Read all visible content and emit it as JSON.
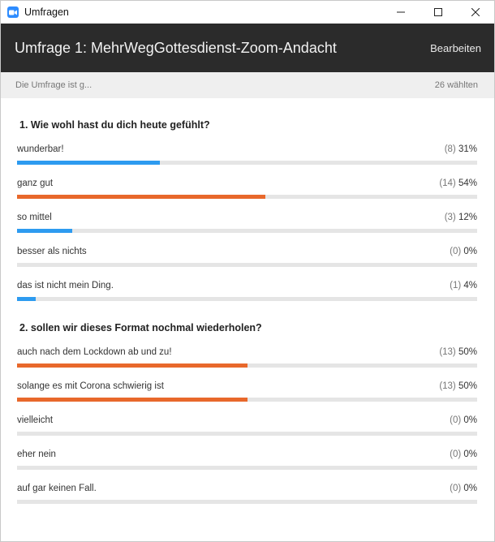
{
  "window": {
    "title": "Umfragen"
  },
  "header": {
    "poll_title": "Umfrage 1: MehrWegGottesdienst-Zoom-Andacht",
    "edit_label": "Bearbeiten"
  },
  "status": {
    "left": "Die Umfrage ist g...",
    "right": "26 wählten"
  },
  "colors": {
    "header_bg": "#2b2b2b",
    "bar_blue": "#2d9bf0",
    "bar_orange": "#e8682b",
    "track": "#e5e5e5"
  },
  "questions": [
    {
      "text": "1. Wie wohl hast du dich heute gefühlt?",
      "answers": [
        {
          "label": "wunderbar!",
          "count": "(8)",
          "percent": "31%",
          "fill": 0.31,
          "color": "blue"
        },
        {
          "label": "ganz gut",
          "count": "(14)",
          "percent": "54%",
          "fill": 0.54,
          "color": "orange"
        },
        {
          "label": "so mittel",
          "count": "(3)",
          "percent": "12%",
          "fill": 0.12,
          "color": "blue"
        },
        {
          "label": "besser als nichts",
          "count": "(0)",
          "percent": "0%",
          "fill": 0,
          "color": "blue"
        },
        {
          "label": "das ist nicht mein Ding.",
          "count": "(1)",
          "percent": "4%",
          "fill": 0.04,
          "color": "blue"
        }
      ]
    },
    {
      "text": "2. sollen wir dieses Format nochmal wiederholen?",
      "answers": [
        {
          "label": "auch nach dem Lockdown ab und zu!",
          "count": "(13)",
          "percent": "50%",
          "fill": 0.5,
          "color": "orange"
        },
        {
          "label": "solange es mit Corona schwierig ist",
          "count": "(13)",
          "percent": "50%",
          "fill": 0.5,
          "color": "orange"
        },
        {
          "label": "vielleicht",
          "count": "(0)",
          "percent": "0%",
          "fill": 0,
          "color": "blue"
        },
        {
          "label": "eher nein",
          "count": "(0)",
          "percent": "0%",
          "fill": 0,
          "color": "blue"
        },
        {
          "label": "auf gar keinen Fall.",
          "count": "(0)",
          "percent": "0%",
          "fill": 0,
          "color": "blue"
        }
      ]
    }
  ]
}
